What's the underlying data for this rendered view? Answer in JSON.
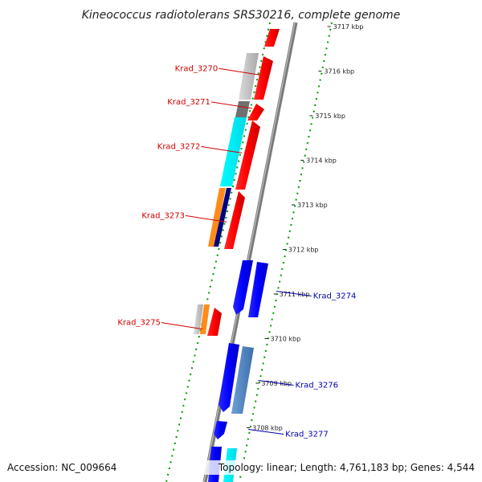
{
  "title": "Kineococcus radiotolerans SRS30216, complete genome",
  "accession": "Accession: NC_009664",
  "summary": "Topology: linear; Length: 4,761,183 bp; Genes: 4,544",
  "colors": {
    "forward_strand": "#ff0000",
    "reverse_strand": "#0000ff",
    "forward_label": "#d10000",
    "reverse_label": "#0000b0",
    "backbone": "#808080",
    "tick_dots": "#009900"
  },
  "kbp_marks": [
    {
      "pos": 3717,
      "label": "3717 kbp"
    },
    {
      "pos": 3716,
      "label": "3716 kbp"
    },
    {
      "pos": 3715,
      "label": "3715 kbp"
    },
    {
      "pos": 3714,
      "label": "3714 kbp"
    },
    {
      "pos": 3713,
      "label": "3713 kbp"
    },
    {
      "pos": 3712,
      "label": "3712 kbp"
    },
    {
      "pos": 3711,
      "label": "3711 kbp"
    },
    {
      "pos": 3710,
      "label": "3710 kbp"
    },
    {
      "pos": 3709,
      "label": "3709 kbp"
    },
    {
      "pos": 3708,
      "label": "3708 kbp"
    }
  ],
  "genes": [
    {
      "label": "Krad_3270",
      "strand": "forward",
      "from_kbp": 3716.5,
      "to_kbp": 3715.4
    },
    {
      "label": "Krad_3271",
      "strand": "forward",
      "from_kbp": 3715.4,
      "to_kbp": 3715.0
    },
    {
      "label": "Krad_3272",
      "strand": "forward",
      "from_kbp": 3715.0,
      "to_kbp": 3713.4
    },
    {
      "label": "Krad_3273",
      "strand": "forward",
      "from_kbp": 3713.3,
      "to_kbp": 3712.0
    },
    {
      "label": "Krad_3274",
      "strand": "reverse",
      "from_kbp": 3711.8,
      "to_kbp": 3710.4
    },
    {
      "label": "Krad_3275",
      "strand": "forward",
      "from_kbp": 3710.6,
      "to_kbp": 3709.9
    },
    {
      "label": "Krad_3276",
      "strand": "reverse",
      "from_kbp": 3709.8,
      "to_kbp": 3708.4
    },
    {
      "label": "Krad_3277",
      "strand": "reverse",
      "from_kbp": 3708.2,
      "to_kbp": 3707.8
    }
  ]
}
